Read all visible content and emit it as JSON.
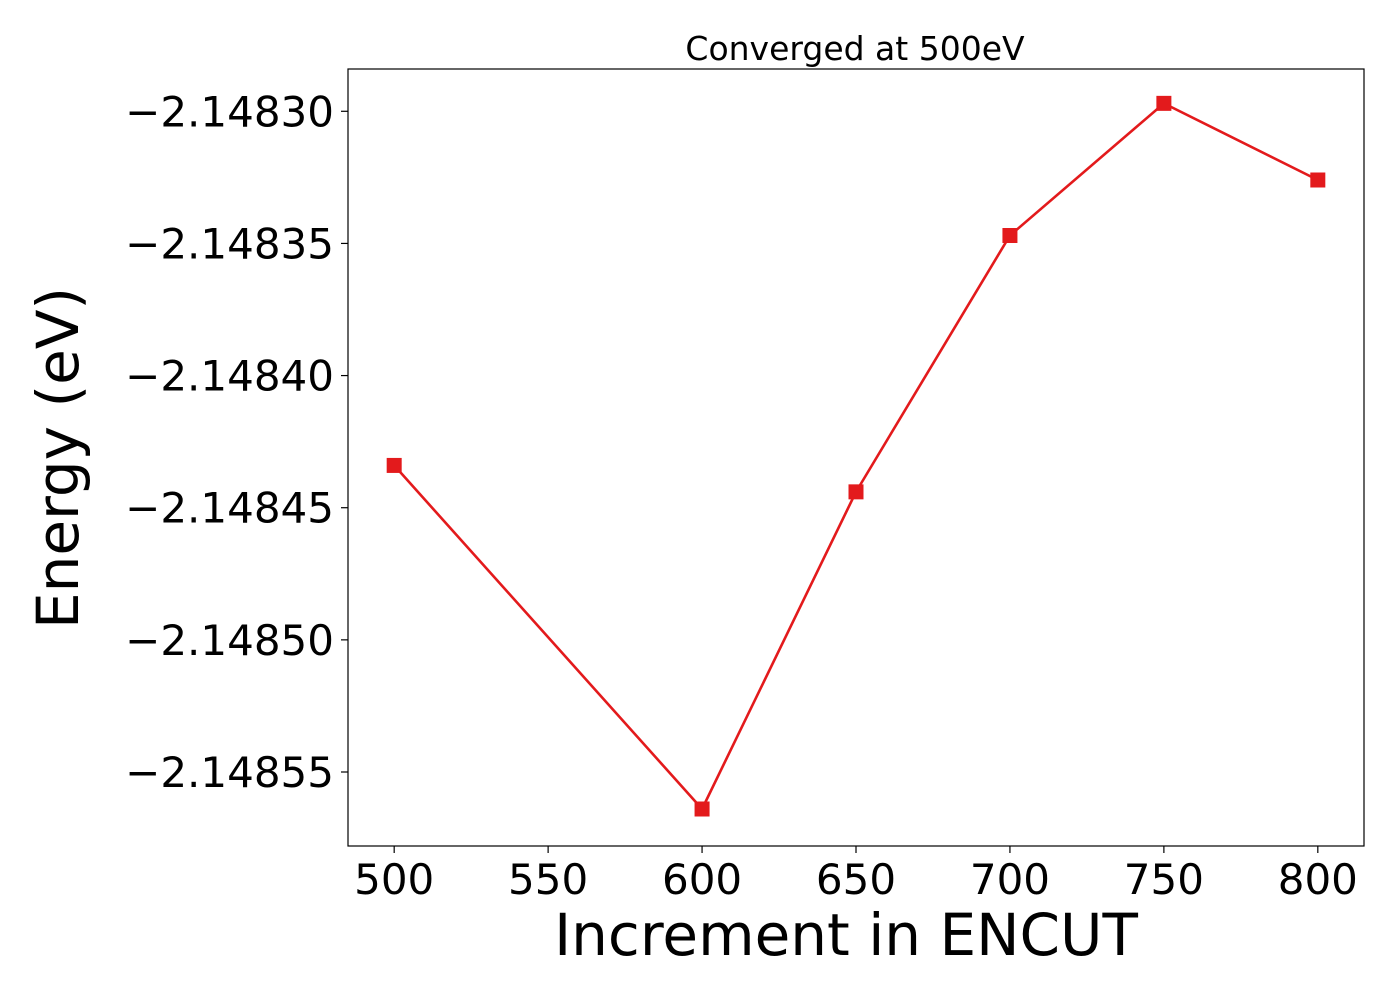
{
  "chart_data": {
    "type": "line",
    "title": "Converged at 500eV",
    "xlabel": "Increment in ENCUT",
    "ylabel": "Energy (eV)",
    "x": [
      500,
      600,
      650,
      700,
      750,
      800
    ],
    "series": [
      {
        "values": [
          -2.148434,
          -2.148564,
          -2.148444,
          -2.148347,
          -2.148297,
          -2.148326
        ],
        "color": "#e31a1c",
        "marker": "square"
      }
    ],
    "xlim": [
      485,
      815
    ],
    "ylim": [
      -2.148578,
      -2.148284
    ],
    "xticks": [
      500,
      550,
      600,
      650,
      700,
      750,
      800
    ],
    "xtick_labels": [
      "500",
      "550",
      "600",
      "650",
      "700",
      "750",
      "800"
    ],
    "yticks": [
      -2.1483,
      -2.14835,
      -2.1484,
      -2.14845,
      -2.1485,
      -2.14855
    ],
    "ytick_labels": [
      "−2.14830",
      "−2.14835",
      "−2.14840",
      "−2.14845",
      "−2.14850",
      "−2.14855"
    ],
    "grid": false,
    "legend": false
  }
}
